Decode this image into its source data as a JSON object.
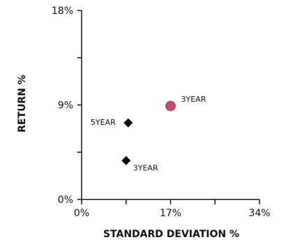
{
  "chart_data": {
    "type": "scatter",
    "title": "",
    "xlabel": "STANDARD DEVIATION %",
    "ylabel": "RETURN %",
    "xlim": [
      0,
      34
    ],
    "ylim": [
      0,
      18
    ],
    "x_ticks": [
      0,
      8.5,
      17,
      25.5,
      34
    ],
    "x_tick_labels": [
      "0%",
      "",
      "17%",
      "",
      "34%"
    ],
    "y_ticks": [
      0,
      4.5,
      9,
      13.5,
      18
    ],
    "y_tick_labels": [
      "0%",
      "",
      "9%",
      "",
      "18%"
    ],
    "grid": false,
    "points": [
      {
        "label": "3YEAR",
        "x": 17,
        "y": 8.9,
        "marker": "circle",
        "color": "#c2486a",
        "label_position": "upper-right"
      },
      {
        "label": "5YEAR",
        "x": 8.9,
        "y": 7.3,
        "marker": "diamond",
        "color": "#000000",
        "label_position": "left"
      },
      {
        "label": "3YEAR",
        "x": 8.5,
        "y": 3.7,
        "marker": "diamond",
        "color": "#000000",
        "label_position": "lower-right"
      }
    ]
  }
}
